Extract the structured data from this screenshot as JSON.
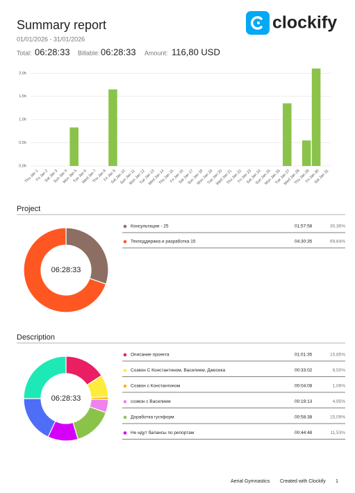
{
  "header": {
    "title": "Summary report",
    "date_range": "01/01/2026 - 31/01/2026",
    "logo_text": "clockify"
  },
  "totals": {
    "total_label": "Total:",
    "total": "06:28:33",
    "billable_label": "Billable:",
    "billable": "06:28:33",
    "amount_label": "Amount:",
    "amount": "116,80 USD"
  },
  "bar_chart": {
    "type": "bar",
    "color": "#8bc34a",
    "categories": [
      "Thu Jan 1",
      "Fri Jan 2",
      "Sat Jan 3",
      "Sun Jan 4",
      "Mon Jan 5",
      "Tue Jan 6",
      "Wed Jan 7",
      "Thu Jan 8",
      "Fri Jan 9",
      "Sat Jan 10",
      "Sun Jan 11",
      "Mon Jan 12",
      "Tue Jan 13",
      "Wed Jan 14",
      "Thu Jan 15",
      "Fri Jan 16",
      "Sat Jan 17",
      "Sun Jan 18",
      "Mon Jan 19",
      "Tue Jan 20",
      "Wed Jan 21",
      "Thu Jan 22",
      "Fri Jan 23",
      "Sat Jan 24",
      "Sun Jan 25",
      "Mon Jan 26",
      "Tue Jan 27",
      "Wed Jan 28",
      "Thu Jan 29",
      "Fri Jan 30",
      "Sat Jan 31"
    ],
    "values": [
      0,
      0,
      0,
      0,
      0.83,
      0,
      0,
      0,
      1.65,
      0,
      0,
      0,
      0,
      0,
      0,
      0,
      0,
      0,
      0,
      0,
      0,
      0,
      0,
      0,
      0,
      0,
      1.35,
      0,
      0.55,
      2.1,
      0
    ],
    "ylim": [
      0,
      2.2
    ],
    "yticks": [
      {
        "value": 0,
        "label": "0,0h"
      },
      {
        "value": 0.5,
        "label": "0,5h"
      },
      {
        "value": 1,
        "label": "1,0h"
      },
      {
        "value": 1.5,
        "label": "1,5h"
      },
      {
        "value": 2,
        "label": "2,0h"
      }
    ],
    "grid": true
  },
  "project": {
    "title": "Project",
    "center_label": "06:28:33",
    "items": [
      {
        "name": "Консультации - 25",
        "color": "#8d6e63",
        "duration": "01:57:58",
        "percent": 30.36,
        "percent_label": "30,36%"
      },
      {
        "name": "Техподдержка и разработка 15",
        "color": "#ff5722",
        "duration": "04:30:35",
        "percent": 69.64,
        "percent_label": "69,64%"
      }
    ]
  },
  "description": {
    "title": "Description",
    "center_label": "06:28:33",
    "items": [
      {
        "name": "Описание проекта",
        "color": "#e91e63",
        "duration": "01:01:35",
        "percent": 15.85,
        "percent_label": "15,85%"
      },
      {
        "name": "Созвон С Константином, Василием, Джесика",
        "color": "#ffeb3b",
        "duration": "00:33:02",
        "percent": 8.5,
        "percent_label": "8,50%"
      },
      {
        "name": "Созвон с Константином",
        "color": "#ffb300",
        "duration": "00:04:08",
        "percent": 1.06,
        "percent_label": "1,06%"
      },
      {
        "name": "созвон с Василием",
        "color": "#ee82ee",
        "duration": "00:19:13",
        "percent": 4.95,
        "percent_label": "4,95%"
      },
      {
        "name": "Доработка гуглформ",
        "color": "#8bc34a",
        "duration": "00:58:38",
        "percent": 15.09,
        "percent_label": "15,09%"
      },
      {
        "name": "Не идут балансы по репортам",
        "color": "#d500f9",
        "duration": "00:44:48",
        "percent": 11.53,
        "percent_label": "11,53%"
      }
    ],
    "unlisted_segments": [
      {
        "color": "#4f6ef7",
        "percent": 18.02
      },
      {
        "color": "#1de9b6",
        "percent": 25
      }
    ]
  },
  "footer": {
    "workspace": "Aerial Gymnastics",
    "created": "Created with Clockify",
    "page": "1"
  }
}
